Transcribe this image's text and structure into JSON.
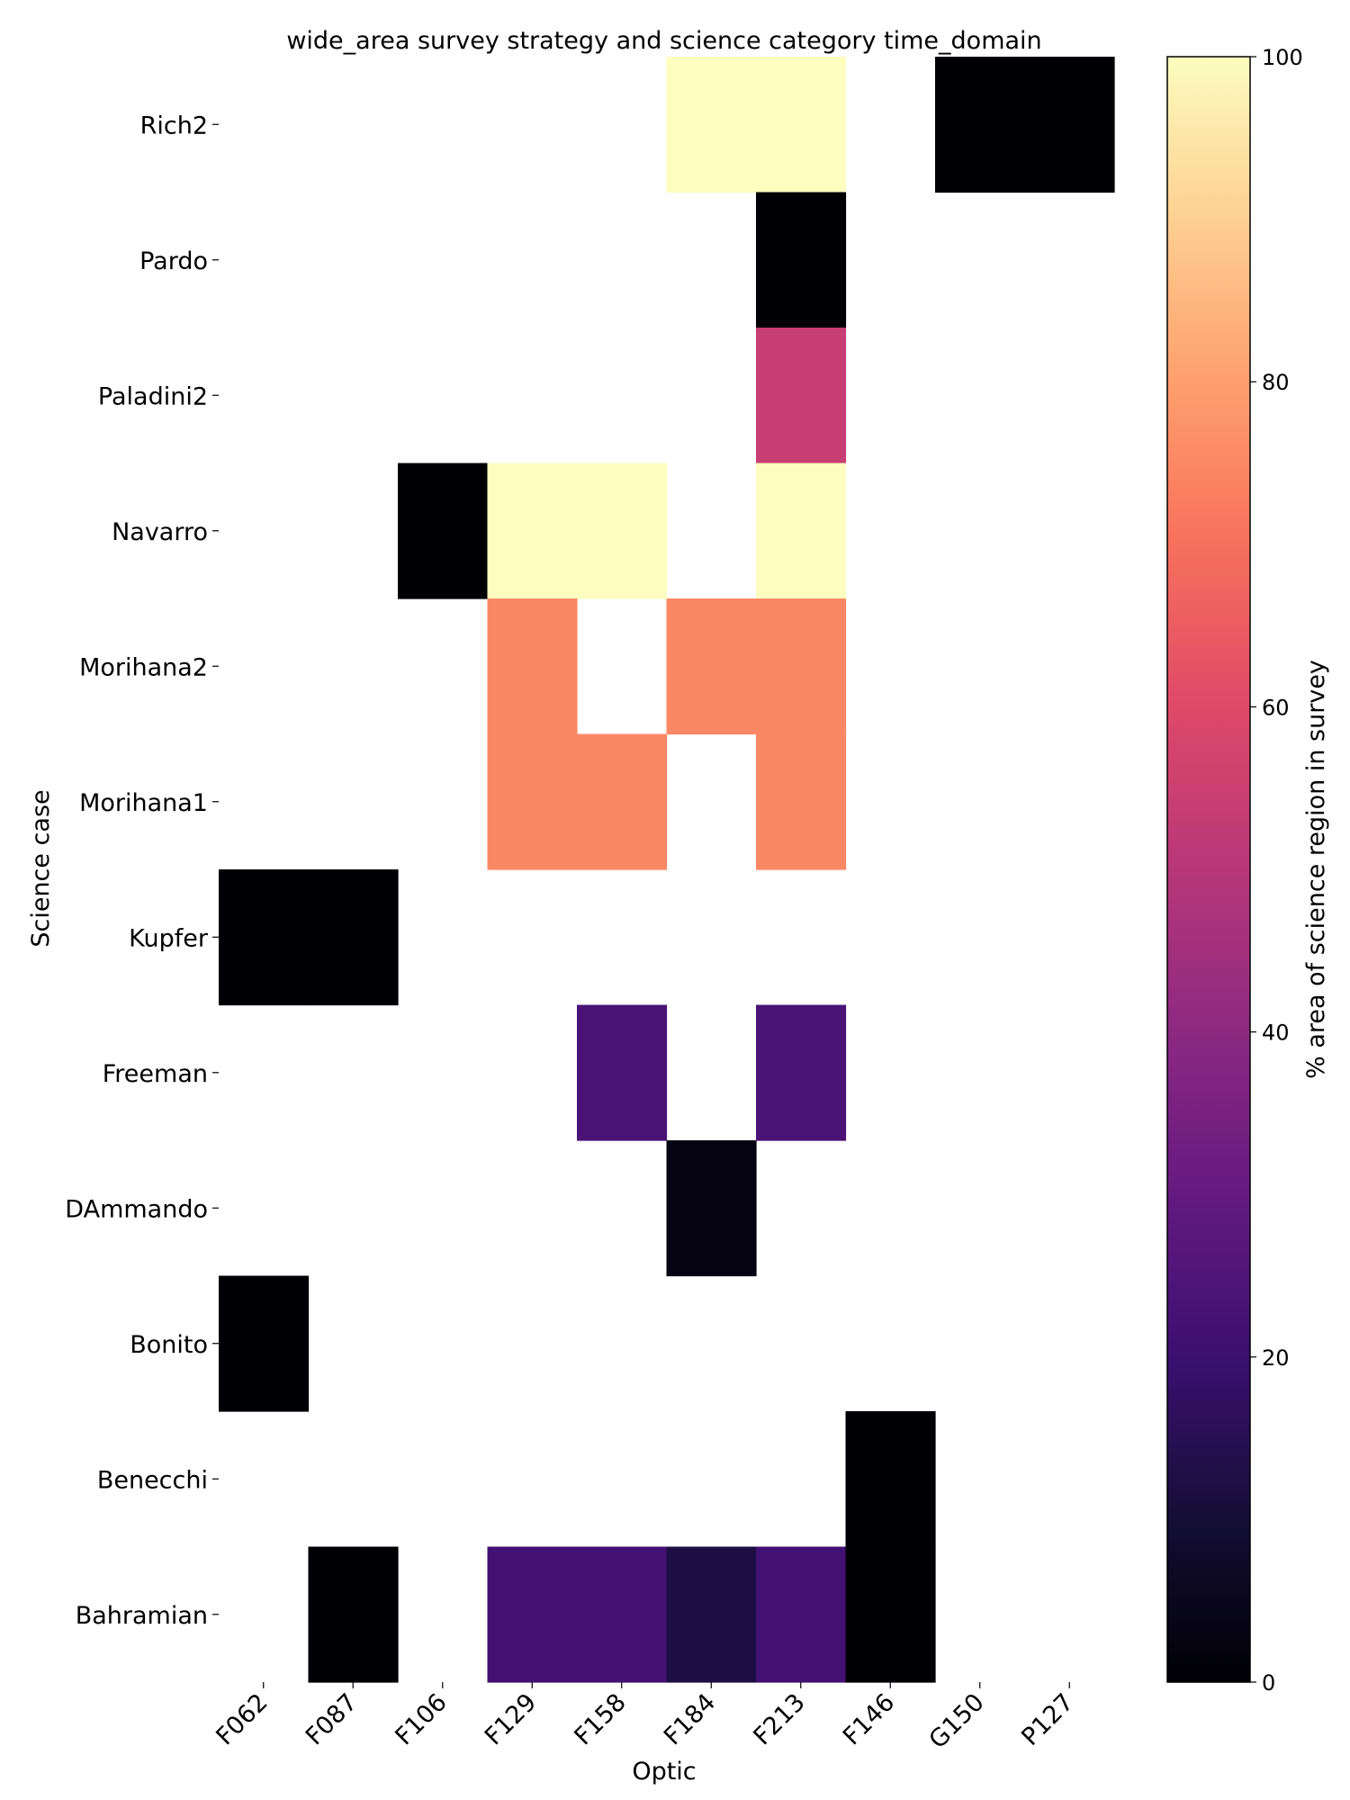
{
  "chart_data": {
    "type": "heatmap",
    "title": "wide_area survey strategy and science category time_domain",
    "xlabel": "Optic",
    "ylabel": "Science case",
    "x_categories": [
      "F062",
      "F087",
      "F106",
      "F129",
      "F158",
      "F184",
      "F213",
      "F146",
      "G150",
      "P127"
    ],
    "y_categories": [
      "Rich2",
      "Pardo",
      "Paladini2",
      "Navarro",
      "Morihana2",
      "Morihana1",
      "Kupfer",
      "Freeman",
      "DAmmando",
      "Bonito",
      "Benecchi",
      "Bahramian"
    ],
    "values": [
      [
        null,
        null,
        null,
        null,
        null,
        100,
        100,
        null,
        0,
        0
      ],
      [
        null,
        null,
        null,
        null,
        null,
        null,
        0,
        null,
        null,
        null
      ],
      [
        null,
        null,
        null,
        null,
        null,
        null,
        54,
        null,
        null,
        null
      ],
      [
        null,
        null,
        0,
        100,
        100,
        null,
        100,
        null,
        null,
        null
      ],
      [
        null,
        null,
        null,
        75,
        null,
        75,
        75,
        null,
        null,
        null
      ],
      [
        null,
        null,
        null,
        75,
        75,
        null,
        75,
        null,
        null,
        null
      ],
      [
        0,
        0,
        null,
        null,
        null,
        null,
        null,
        null,
        null,
        null
      ],
      [
        null,
        null,
        null,
        null,
        24,
        null,
        24,
        null,
        null,
        null
      ],
      [
        null,
        null,
        null,
        null,
        null,
        3,
        null,
        null,
        null,
        null
      ],
      [
        0,
        null,
        null,
        null,
        null,
        null,
        null,
        null,
        null,
        null
      ],
      [
        null,
        null,
        null,
        null,
        null,
        null,
        null,
        0,
        null,
        null
      ],
      [
        null,
        0,
        null,
        22,
        22,
        12,
        22,
        0,
        null,
        null
      ]
    ],
    "colorbar": {
      "label": "% area of science region in survey",
      "colormap": "magma",
      "range": [
        0,
        100
      ],
      "ticks": [
        0,
        20,
        40,
        60,
        80,
        100
      ]
    }
  }
}
